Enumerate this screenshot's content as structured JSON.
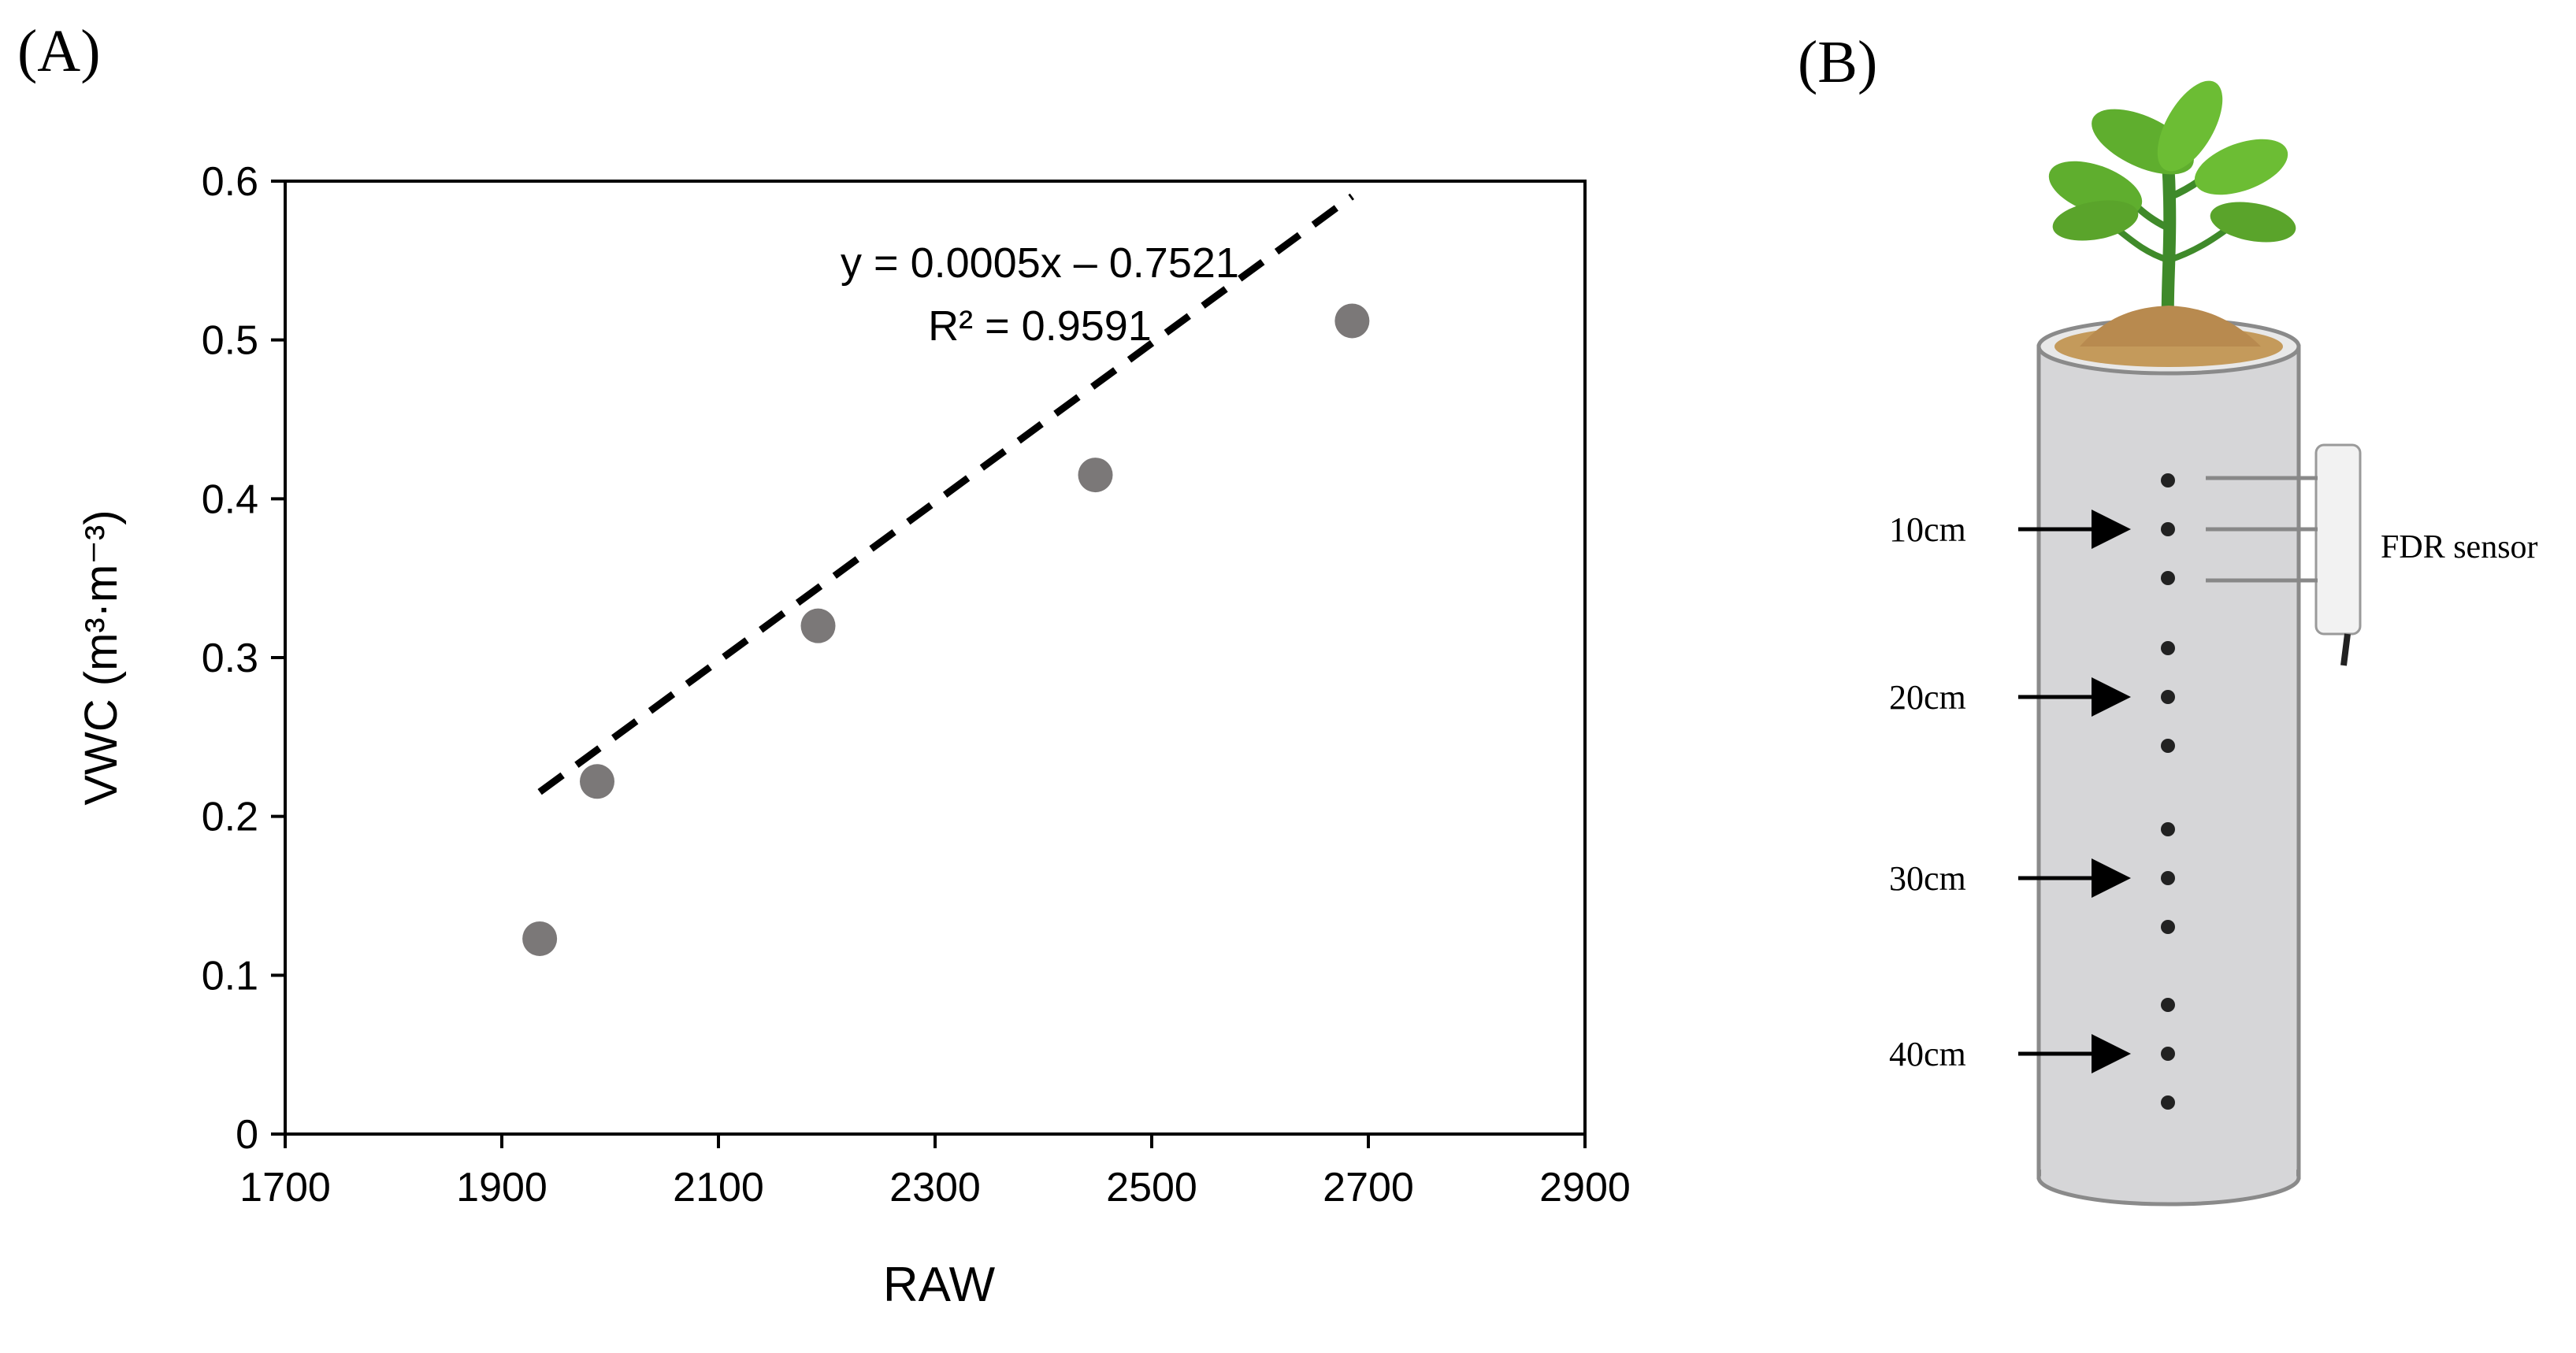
{
  "panel_a": {
    "label": "(A)"
  },
  "panel_b": {
    "label": "(B)",
    "sensor_label": "FDR sensor",
    "depth_labels": [
      "10cm",
      "20cm",
      "30cm",
      "40cm"
    ]
  },
  "chart_data": {
    "type": "scatter",
    "xlabel": "RAW",
    "ylabel": "VWC (m³·m⁻³)",
    "xlim": [
      1700,
      2900
    ],
    "ylim": [
      0,
      0.6
    ],
    "xticks": [
      "1700",
      "1900",
      "2100",
      "2300",
      "2500",
      "2700",
      "2900"
    ],
    "yticks": [
      "0",
      "0.1",
      "0.2",
      "0.3",
      "0.4",
      "0.5",
      "0.6"
    ],
    "points": [
      {
        "x": 1935,
        "y": 0.123
      },
      {
        "x": 1988,
        "y": 0.222
      },
      {
        "x": 2192,
        "y": 0.32
      },
      {
        "x": 2448,
        "y": 0.415
      },
      {
        "x": 2685,
        "y": 0.512
      }
    ],
    "trendline": {
      "slope": 0.0005,
      "intercept": -0.7521,
      "x_range": [
        1935,
        2685
      ]
    },
    "equation": "y = 0.0005x – 0.7521",
    "r_squared": "R² = 0.9591",
    "grid": false,
    "colors": {
      "point": "#7b7878",
      "trendline": "#000000",
      "axis": "#000000"
    }
  }
}
